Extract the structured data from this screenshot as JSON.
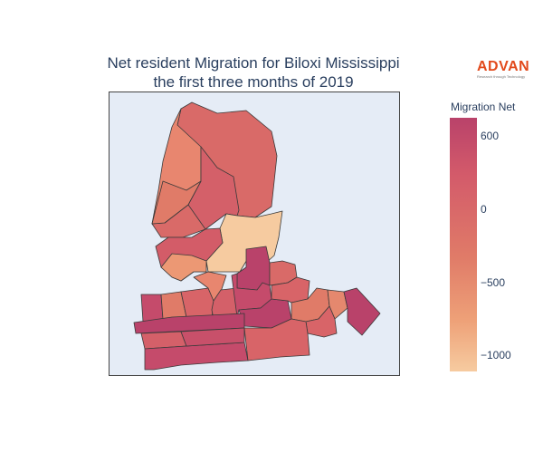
{
  "title": {
    "line1": "Net resident Migration for Biloxi Mississippi",
    "line2": "the first three months of 2019"
  },
  "logo": {
    "word": "ADVAN",
    "tagline": "Research through Technology"
  },
  "colorbar": {
    "title": "Migration Net",
    "ticks": [
      "600",
      "0",
      "−500",
      "−1000"
    ],
    "low_color": "#f6cba0",
    "high_color": "#b9426a"
  },
  "map": {
    "background": "#e5ecf6",
    "border_color": "#444444"
  }
}
